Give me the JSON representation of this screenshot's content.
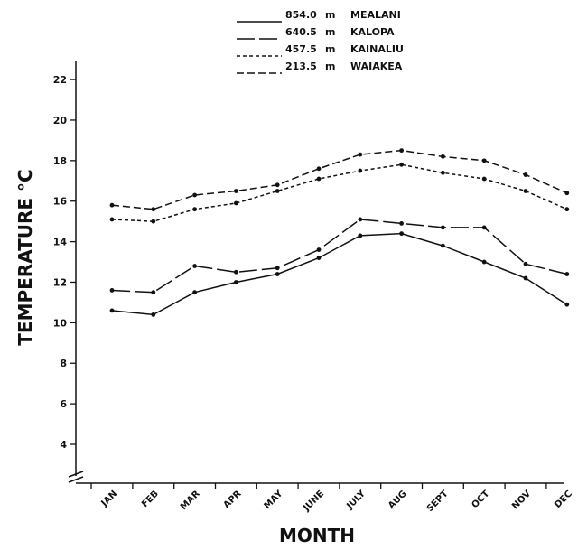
{
  "chart_data": {
    "type": "line",
    "title": "",
    "xlabel": "MONTH",
    "ylabel": "TEMPERATURE °C",
    "categories": [
      "JAN",
      "FEB",
      "MAR",
      "APR",
      "MAY",
      "JUNE",
      "JULY",
      "AUG",
      "SEPT",
      "OCT",
      "NOV",
      "DEC"
    ],
    "ylim": [
      4,
      22
    ],
    "yticks": [
      "4",
      "6",
      "8",
      "10",
      "12",
      "14",
      "16",
      "18",
      "20",
      "22"
    ],
    "axis_break": true,
    "grid": false,
    "legend_position": "top-center",
    "series": [
      {
        "elevation": "854.0",
        "unit": "m",
        "name": "MEALANI",
        "line_style": "solid",
        "values": [
          10.6,
          10.4,
          11.5,
          12.0,
          12.4,
          13.2,
          14.3,
          14.4,
          13.8,
          13.0,
          12.2,
          10.9
        ]
      },
      {
        "elevation": "640.5",
        "unit": "m",
        "name": "KALOPA",
        "line_style": "long-dash",
        "values": [
          11.6,
          11.5,
          12.8,
          12.5,
          12.7,
          13.6,
          15.1,
          14.9,
          14.7,
          14.7,
          12.9,
          12.4
        ]
      },
      {
        "elevation": "457.5",
        "unit": "m",
        "name": "KAINALIU",
        "line_style": "short-dash",
        "values": [
          15.1,
          15.0,
          15.6,
          15.9,
          16.5,
          17.1,
          17.5,
          17.8,
          17.4,
          17.1,
          16.5,
          15.6
        ]
      },
      {
        "elevation": "213.5",
        "unit": "m",
        "name": "WAIAKEA",
        "line_style": "medium-dash",
        "values": [
          15.8,
          15.6,
          16.3,
          16.5,
          16.8,
          17.6,
          18.3,
          18.5,
          18.2,
          18.0,
          17.3,
          16.4
        ]
      }
    ]
  }
}
